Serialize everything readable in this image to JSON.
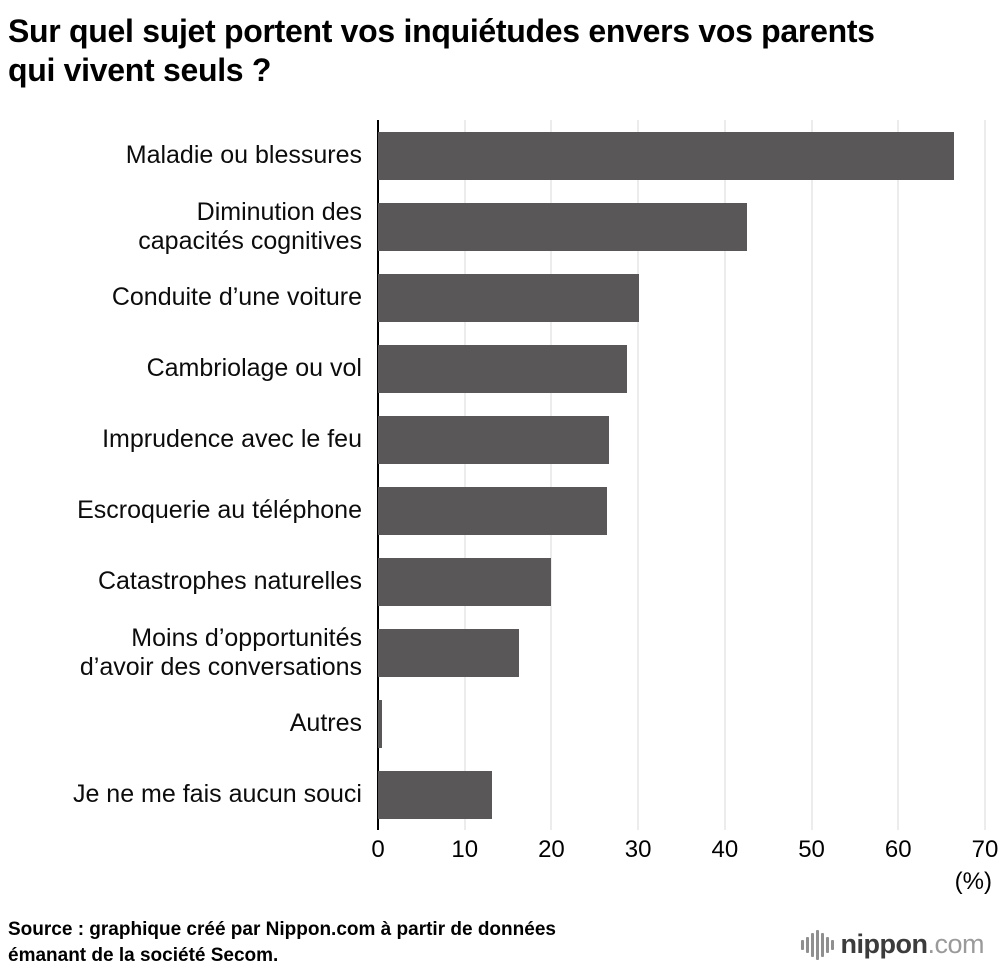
{
  "title": "Sur quel sujet portent vos inquiétudes envers vos parents qui vivent seuls ?",
  "chart_data": {
    "type": "bar",
    "orientation": "horizontal",
    "categories": [
      "Maladie ou blessures",
      "Diminution des\ncapacités cognitives",
      "Conduite d’une voiture",
      "Cambriolage ou vol",
      "Imprudence avec le feu",
      "Escroquerie au téléphone",
      "Catastrophes naturelles",
      "Moins d’opportunités\nd’avoir des conversations",
      "Autres",
      "Je ne me fais aucun souci"
    ],
    "values": [
      66.4,
      42.6,
      30.1,
      28.7,
      26.6,
      26.4,
      20.0,
      16.3,
      0.5,
      13.1
    ],
    "xlim": [
      0,
      70
    ],
    "xticks": [
      0,
      10,
      20,
      30,
      40,
      50,
      60,
      70
    ],
    "x_unit_label": "(%)",
    "bar_color": "#595757",
    "grid": true,
    "legend": "none"
  },
  "source": {
    "line1": "Source : graphique créé par Nippon.com à partir de données",
    "line2": "émanant de la société Secom."
  },
  "logo": {
    "brand": "nippon",
    "tld": ".com"
  }
}
